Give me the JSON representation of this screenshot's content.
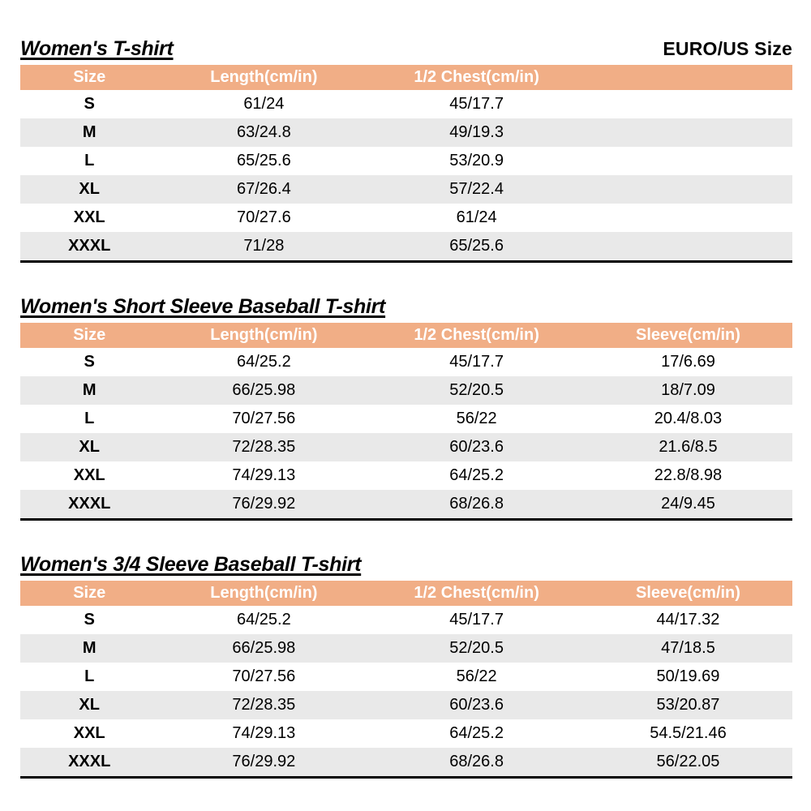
{
  "page": {
    "standard_label": "EURO/US Size"
  },
  "colors": {
    "header_bg": "#F1AE86",
    "header_text": "#FFFFFF",
    "alt_row_bg": "#E9E9E9",
    "body_text": "#000000"
  },
  "tables": [
    {
      "title": "Women's T-shirt",
      "columns": [
        "Size",
        "Length(cm/in)",
        "1/2 Chest(cm/in)"
      ],
      "rows": [
        [
          "S",
          "61/24",
          "45/17.7"
        ],
        [
          "M",
          "63/24.8",
          "49/19.3"
        ],
        [
          "L",
          "65/25.6",
          "53/20.9"
        ],
        [
          "XL",
          "67/26.4",
          "57/22.4"
        ],
        [
          "XXL",
          "70/27.6",
          "61/24"
        ],
        [
          "XXXL",
          "71/28",
          "65/25.6"
        ]
      ]
    },
    {
      "title": "Women's Short Sleeve Baseball T-shirt",
      "columns": [
        "Size",
        "Length(cm/in)",
        "1/2 Chest(cm/in)",
        "Sleeve(cm/in)"
      ],
      "rows": [
        [
          "S",
          "64/25.2",
          "45/17.7",
          "17/6.69"
        ],
        [
          "M",
          "66/25.98",
          "52/20.5",
          "18/7.09"
        ],
        [
          "L",
          "70/27.56",
          "56/22",
          "20.4/8.03"
        ],
        [
          "XL",
          "72/28.35",
          "60/23.6",
          "21.6/8.5"
        ],
        [
          "XXL",
          "74/29.13",
          "64/25.2",
          "22.8/8.98"
        ],
        [
          "XXXL",
          "76/29.92",
          "68/26.8",
          "24/9.45"
        ]
      ]
    },
    {
      "title": "Women's 3/4 Sleeve Baseball T-shirt",
      "columns": [
        "Size",
        "Length(cm/in)",
        "1/2 Chest(cm/in)",
        "Sleeve(cm/in)"
      ],
      "rows": [
        [
          "S",
          "64/25.2",
          "45/17.7",
          "44/17.32"
        ],
        [
          "M",
          "66/25.98",
          "52/20.5",
          "47/18.5"
        ],
        [
          "L",
          "70/27.56",
          "56/22",
          "50/19.69"
        ],
        [
          "XL",
          "72/28.35",
          "60/23.6",
          "53/20.87"
        ],
        [
          "XXL",
          "74/29.13",
          "64/25.2",
          "54.5/21.46"
        ],
        [
          "XXXL",
          "76/29.92",
          "68/26.8",
          "56/22.05"
        ]
      ]
    }
  ]
}
